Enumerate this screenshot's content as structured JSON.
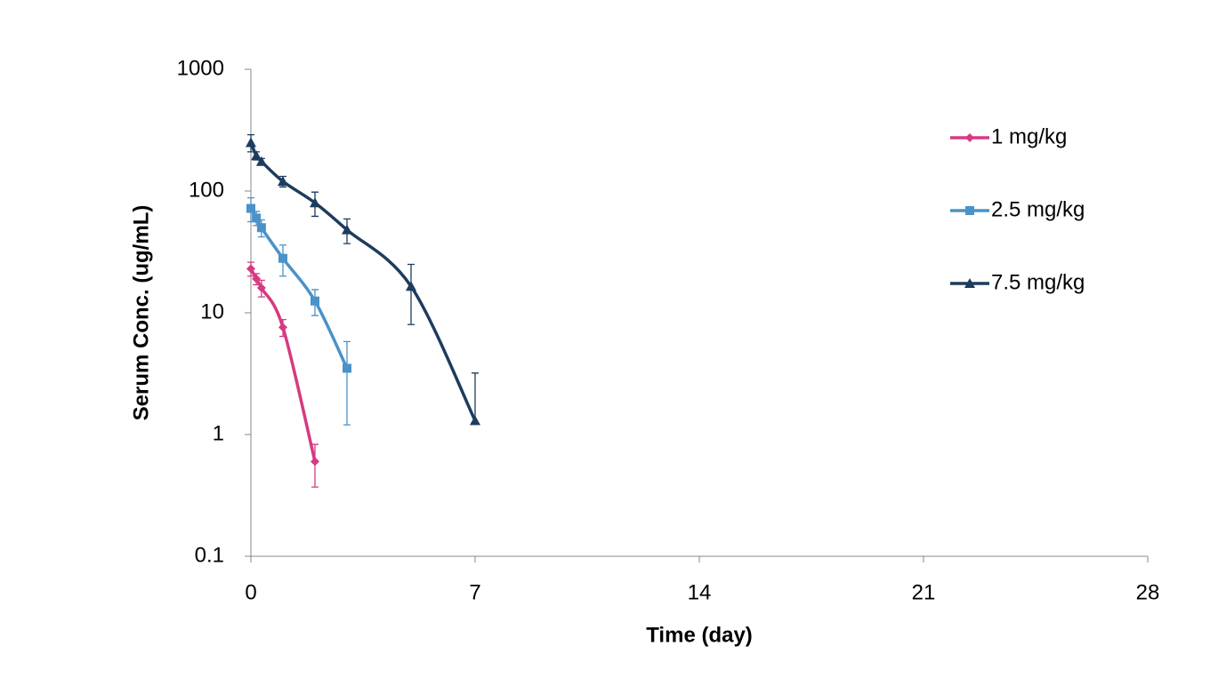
{
  "chart_data": {
    "type": "line",
    "x_label": "Time (day)",
    "y_label": "Serum Conc. (ug/mL)",
    "xlim": [
      0,
      28
    ],
    "xticks": [
      0,
      7,
      14,
      21,
      28
    ],
    "ylim": [
      0.1,
      1000
    ],
    "yticks": [
      0.1,
      1,
      10,
      100,
      1000
    ],
    "y_scale": "log",
    "legend": "right",
    "smooth": true,
    "series": [
      {
        "name": "1 mg/kg",
        "color": "#d63a80",
        "marker": "diamond",
        "x": [
          0,
          0.17,
          0.33,
          1,
          2
        ],
        "values": [
          23,
          19,
          16,
          7.6,
          0.6
        ],
        "errors": [
          3,
          2,
          2.5,
          1.2,
          0.23
        ]
      },
      {
        "name": "2.5 mg/kg",
        "color": "#4a92c8",
        "marker": "square",
        "x": [
          0,
          0.17,
          0.33,
          1,
          2,
          3
        ],
        "values": [
          72,
          60,
          50,
          28,
          12.5,
          3.5
        ],
        "errors": [
          16,
          8,
          8,
          8,
          3,
          2.3
        ]
      },
      {
        "name": "7.5 mg/kg",
        "color": "#1d3c5e",
        "marker": "triangle",
        "x": [
          0,
          0.17,
          0.33,
          1,
          2,
          3,
          5,
          7
        ],
        "values": [
          250,
          195,
          175,
          120,
          80,
          48,
          16.5,
          1.3
        ],
        "errors": [
          40,
          15,
          10,
          12,
          18,
          11,
          8.5,
          1.9
        ]
      }
    ]
  }
}
